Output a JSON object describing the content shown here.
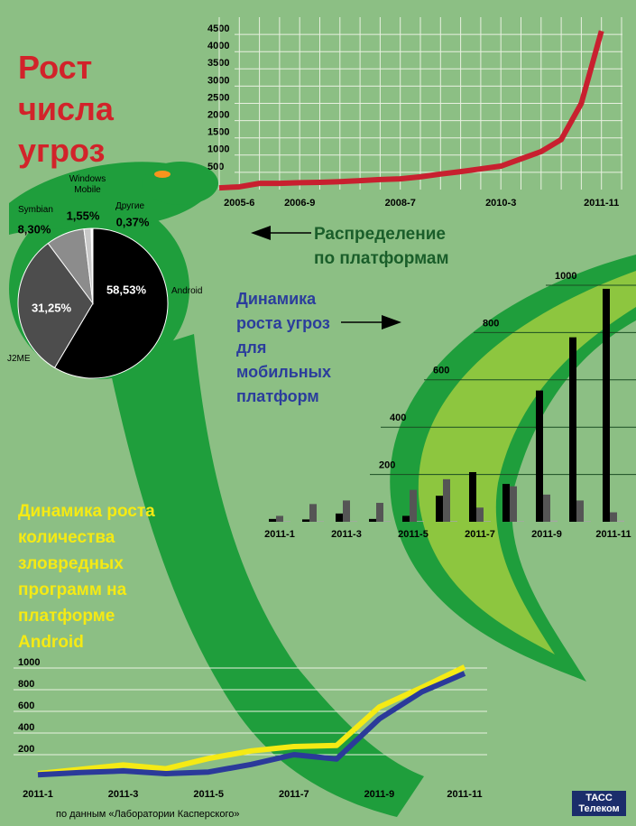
{
  "title": "Рост числа угроз",
  "source": "по данным «Лаборатории Касперского»",
  "logo": "ТАСС Телеком",
  "chart_data": [
    {
      "type": "line",
      "categories": [
        null,
        "2005-6",
        null,
        null,
        "2006-9",
        null,
        null,
        null,
        null,
        "2008-7",
        null,
        null,
        null,
        null,
        "2010-3",
        null,
        null,
        null,
        null,
        "2011-11",
        null
      ],
      "series": [
        {
          "color": "#c8202f",
          "values": [
            50,
            80,
            180,
            180,
            200,
            210,
            230,
            260,
            290,
            310,
            370,
            450,
            520,
            600,
            680,
            890,
            1100,
            1450,
            2500,
            4600,
            null
          ]
        }
      ],
      "ylim": [
        0,
        5000
      ],
      "yticks": [
        500,
        1000,
        1500,
        2000,
        2500,
        3000,
        3500,
        4000,
        4500
      ],
      "grid": true
    },
    {
      "type": "pie",
      "title": "Распределение по платформам",
      "categories": [
        "Android",
        "J2ME",
        "Symbian",
        "Windows Mobile",
        "Другие"
      ],
      "values": [
        58.53,
        31.25,
        8.3,
        1.55,
        0.37
      ],
      "value_labels": [
        "58,53%",
        "31,25%",
        "8,30%",
        "1,55%",
        "0,37%"
      ],
      "colors": [
        "#000000",
        "#4d4d4d",
        "#8c8c8c",
        "#c8c8c8",
        "#ffffff"
      ]
    },
    {
      "type": "bar",
      "title": "Динамика роста угроз для мобильных платформ",
      "categories": [
        "2011-1",
        null,
        "2011-3",
        null,
        "2011-5",
        null,
        "2011-7",
        null,
        "2011-9",
        null,
        "2011-11"
      ],
      "series": [
        {
          "color": "#000000",
          "values": [
            12,
            10,
            35,
            12,
            25,
            110,
            210,
            160,
            555,
            780,
            985
          ]
        },
        {
          "color": "#555555",
          "values": [
            25,
            75,
            90,
            80,
            135,
            180,
            60,
            150,
            115,
            90,
            40
          ]
        },
        {
          "color": "#a6a6a6",
          "values": [
            3,
            3,
            3,
            3,
            3,
            3,
            3,
            3,
            5,
            3,
            5
          ]
        }
      ],
      "ylim": [
        0,
        1000
      ],
      "yticks": [
        200,
        400,
        600,
        800,
        1000
      ],
      "grid": true
    },
    {
      "type": "line",
      "title": "Динамика роста количества зловредных программ на платформе Android",
      "categories": [
        "2011-1",
        null,
        "2011-3",
        null,
        "2011-5",
        null,
        "2011-7",
        null,
        "2011-9",
        null,
        "2011-11"
      ],
      "series": [
        {
          "color": "#f5ea14",
          "values": [
            25,
            65,
            105,
            70,
            165,
            235,
            275,
            285,
            640,
            820,
            1010
          ]
        },
        {
          "color": "#2b3a9a",
          "values": [
            15,
            35,
            50,
            25,
            40,
            110,
            200,
            160,
            530,
            780,
            950
          ]
        }
      ],
      "ylim": [
        0,
        1000
      ],
      "yticks": [
        200,
        400,
        600,
        800,
        1000
      ],
      "grid": true
    }
  ]
}
